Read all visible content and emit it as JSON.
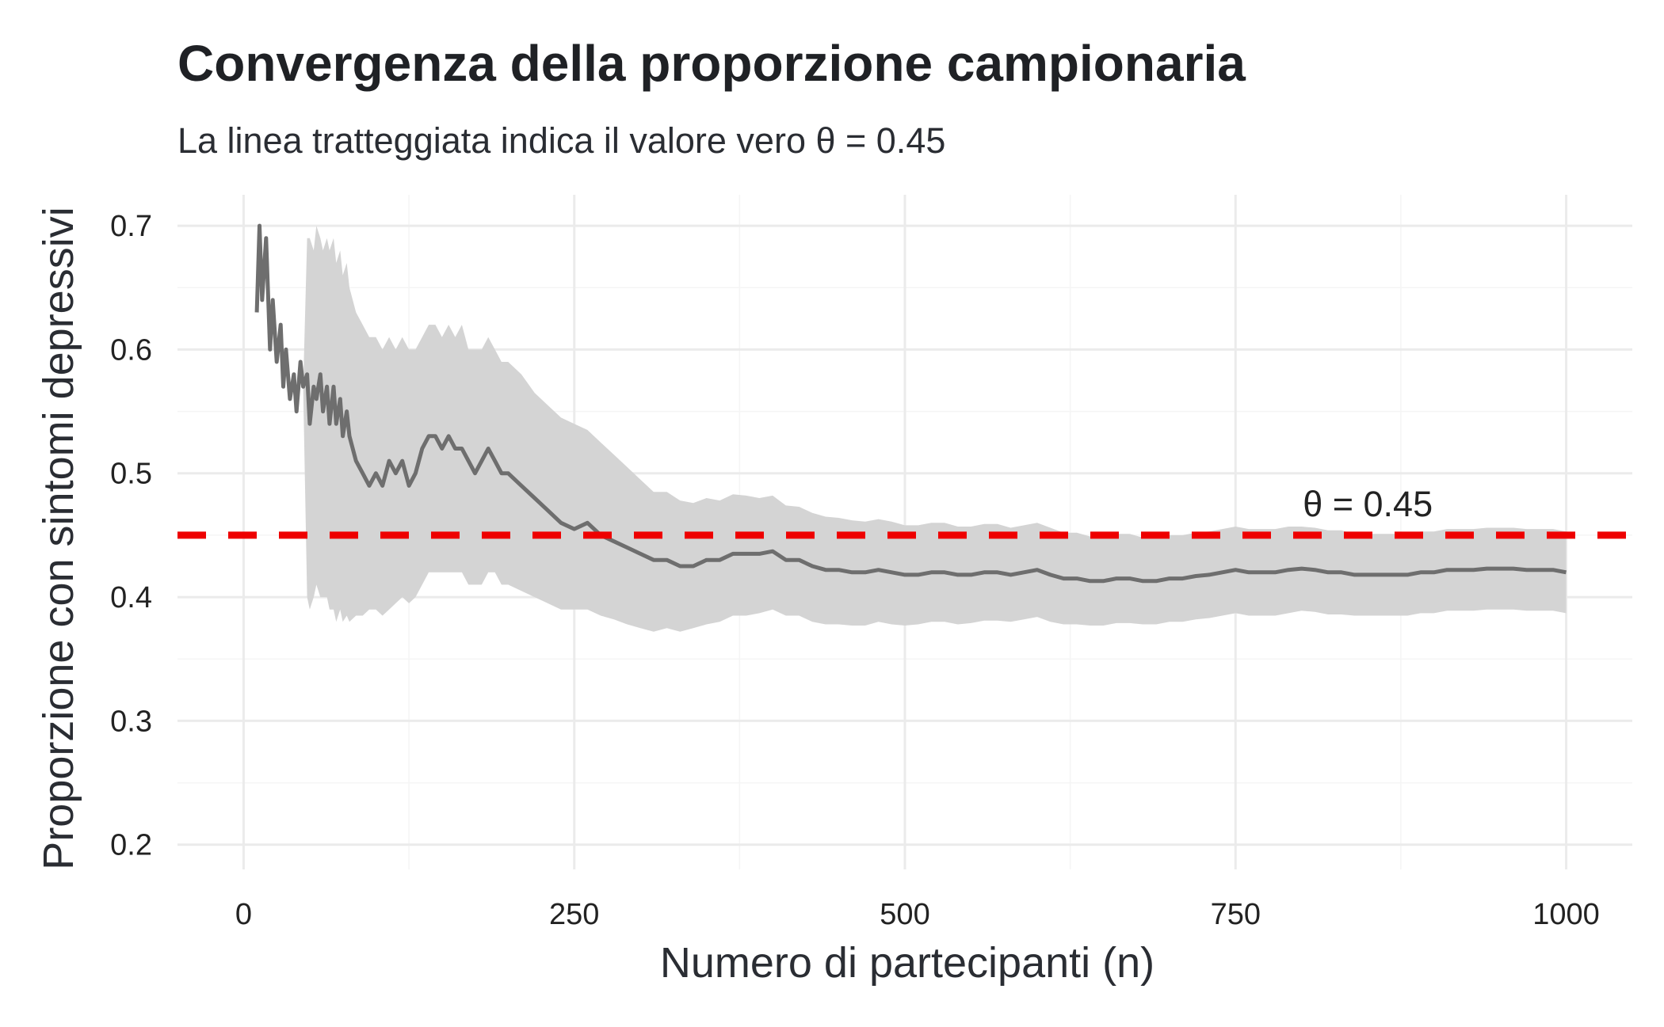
{
  "chart_data": {
    "type": "line",
    "title": "Convergenza della proporzione campionaria",
    "subtitle": "La linea tratteggiata indica il valore vero θ = 0.45",
    "xlabel": "Numero di partecipanti (n)",
    "ylabel": "Proporzione con sintomi depressivi",
    "xlim": [
      -50,
      1050
    ],
    "ylim": [
      0.18,
      0.725
    ],
    "xticks": [
      0,
      250,
      500,
      750,
      1000
    ],
    "xtick_labels": [
      "0",
      "250",
      "500",
      "750",
      "1000"
    ],
    "yticks": [
      0.2,
      0.3,
      0.4,
      0.5,
      0.6,
      0.7
    ],
    "ytick_labels": [
      "0.2",
      "0.3",
      "0.4",
      "0.5",
      "0.6",
      "0.7"
    ],
    "grid": true,
    "reference_line": {
      "y": 0.45,
      "label": "θ = 0.45",
      "label_x": 850,
      "color": "#ee0000"
    },
    "colors": {
      "line": "#6e6e6e",
      "band": "#d4d4d4",
      "reference": "#ee0000",
      "grid": "#ebebeb"
    },
    "series": [
      {
        "x": [
          10,
          12,
          14,
          17,
          20,
          22,
          25,
          28,
          30,
          32,
          35,
          38,
          40,
          43,
          45,
          48,
          50,
          53,
          55,
          58,
          60,
          63,
          65,
          68,
          70,
          73,
          75,
          78,
          80,
          85,
          90,
          95,
          100,
          105,
          110,
          115,
          120,
          125,
          130,
          135,
          140,
          145,
          150,
          155,
          160,
          165,
          170,
          175,
          180,
          185,
          190,
          195,
          200,
          210,
          220,
          230,
          240,
          250,
          260,
          270,
          280,
          290,
          300,
          310,
          320,
          330,
          340,
          350,
          360,
          370,
          380,
          390,
          400,
          410,
          420,
          430,
          440,
          450,
          460,
          470,
          480,
          490,
          500,
          510,
          520,
          530,
          540,
          550,
          560,
          570,
          580,
          590,
          600,
          610,
          620,
          630,
          640,
          650,
          660,
          670,
          680,
          690,
          700,
          710,
          720,
          730,
          740,
          750,
          760,
          770,
          780,
          790,
          800,
          810,
          820,
          830,
          840,
          850,
          860,
          870,
          880,
          890,
          900,
          910,
          920,
          930,
          940,
          950,
          960,
          970,
          980,
          990,
          1000
        ],
        "y": [
          0.63,
          0.7,
          0.64,
          0.69,
          0.6,
          0.64,
          0.59,
          0.62,
          0.57,
          0.6,
          0.56,
          0.58,
          0.55,
          0.59,
          0.57,
          0.58,
          0.54,
          0.57,
          0.56,
          0.58,
          0.55,
          0.57,
          0.54,
          0.57,
          0.54,
          0.56,
          0.53,
          0.55,
          0.53,
          0.51,
          0.5,
          0.49,
          0.5,
          0.49,
          0.51,
          0.5,
          0.51,
          0.49,
          0.5,
          0.52,
          0.53,
          0.53,
          0.52,
          0.53,
          0.52,
          0.52,
          0.51,
          0.5,
          0.51,
          0.52,
          0.51,
          0.5,
          0.5,
          0.49,
          0.48,
          0.47,
          0.46,
          0.455,
          0.46,
          0.45,
          0.445,
          0.44,
          0.435,
          0.43,
          0.43,
          0.425,
          0.425,
          0.43,
          0.43,
          0.435,
          0.435,
          0.435,
          0.437,
          0.43,
          0.43,
          0.425,
          0.422,
          0.422,
          0.42,
          0.42,
          0.422,
          0.42,
          0.418,
          0.418,
          0.42,
          0.42,
          0.418,
          0.418,
          0.42,
          0.42,
          0.418,
          0.42,
          0.422,
          0.418,
          0.415,
          0.415,
          0.413,
          0.413,
          0.415,
          0.415,
          0.413,
          0.413,
          0.415,
          0.415,
          0.417,
          0.418,
          0.42,
          0.422,
          0.42,
          0.42,
          0.42,
          0.422,
          0.423,
          0.422,
          0.42,
          0.42,
          0.418,
          0.418,
          0.418,
          0.418,
          0.418,
          0.42,
          0.42,
          0.422,
          0.422,
          0.422,
          0.423,
          0.423,
          0.423,
          0.422,
          0.422,
          0.422,
          0.42
        ],
        "lower": [
          0.63,
          0.7,
          0.64,
          0.69,
          0.6,
          0.64,
          0.59,
          0.62,
          0.57,
          0.6,
          0.56,
          0.58,
          0.55,
          0.59,
          0.57,
          0.4,
          0.39,
          0.4,
          0.41,
          0.4,
          0.4,
          0.4,
          0.39,
          0.39,
          0.38,
          0.39,
          0.38,
          0.385,
          0.38,
          0.385,
          0.385,
          0.39,
          0.39,
          0.385,
          0.39,
          0.395,
          0.4,
          0.395,
          0.4,
          0.41,
          0.42,
          0.42,
          0.42,
          0.42,
          0.42,
          0.42,
          0.41,
          0.41,
          0.41,
          0.42,
          0.42,
          0.41,
          0.41,
          0.405,
          0.4,
          0.395,
          0.39,
          0.39,
          0.39,
          0.385,
          0.382,
          0.378,
          0.375,
          0.372,
          0.375,
          0.372,
          0.375,
          0.378,
          0.38,
          0.385,
          0.385,
          0.387,
          0.39,
          0.385,
          0.385,
          0.38,
          0.378,
          0.378,
          0.377,
          0.377,
          0.38,
          0.378,
          0.377,
          0.378,
          0.38,
          0.38,
          0.378,
          0.379,
          0.381,
          0.381,
          0.38,
          0.382,
          0.384,
          0.38,
          0.378,
          0.378,
          0.377,
          0.377,
          0.379,
          0.379,
          0.378,
          0.378,
          0.38,
          0.38,
          0.382,
          0.383,
          0.385,
          0.387,
          0.385,
          0.385,
          0.385,
          0.387,
          0.389,
          0.388,
          0.386,
          0.386,
          0.385,
          0.385,
          0.385,
          0.385,
          0.385,
          0.387,
          0.387,
          0.389,
          0.389,
          0.389,
          0.39,
          0.39,
          0.39,
          0.389,
          0.389,
          0.389,
          0.387
        ],
        "upper": [
          0.63,
          0.7,
          0.64,
          0.69,
          0.6,
          0.64,
          0.59,
          0.62,
          0.57,
          0.6,
          0.56,
          0.58,
          0.55,
          0.59,
          0.57,
          0.69,
          0.69,
          0.68,
          0.7,
          0.69,
          0.68,
          0.69,
          0.68,
          0.69,
          0.67,
          0.68,
          0.66,
          0.67,
          0.65,
          0.63,
          0.62,
          0.61,
          0.61,
          0.6,
          0.61,
          0.6,
          0.61,
          0.6,
          0.6,
          0.61,
          0.62,
          0.62,
          0.61,
          0.62,
          0.61,
          0.62,
          0.6,
          0.6,
          0.6,
          0.61,
          0.6,
          0.59,
          0.59,
          0.58,
          0.565,
          0.555,
          0.545,
          0.54,
          0.535,
          0.525,
          0.515,
          0.505,
          0.495,
          0.485,
          0.485,
          0.478,
          0.476,
          0.48,
          0.478,
          0.483,
          0.482,
          0.48,
          0.482,
          0.474,
          0.473,
          0.468,
          0.465,
          0.464,
          0.462,
          0.461,
          0.463,
          0.461,
          0.458,
          0.458,
          0.46,
          0.46,
          0.457,
          0.457,
          0.459,
          0.459,
          0.456,
          0.458,
          0.46,
          0.456,
          0.452,
          0.452,
          0.449,
          0.449,
          0.451,
          0.451,
          0.448,
          0.448,
          0.45,
          0.45,
          0.452,
          0.453,
          0.455,
          0.457,
          0.455,
          0.455,
          0.455,
          0.457,
          0.457,
          0.456,
          0.454,
          0.454,
          0.451,
          0.451,
          0.451,
          0.451,
          0.451,
          0.453,
          0.453,
          0.455,
          0.455,
          0.455,
          0.456,
          0.456,
          0.456,
          0.455,
          0.455,
          0.455,
          0.453
        ]
      }
    ]
  }
}
